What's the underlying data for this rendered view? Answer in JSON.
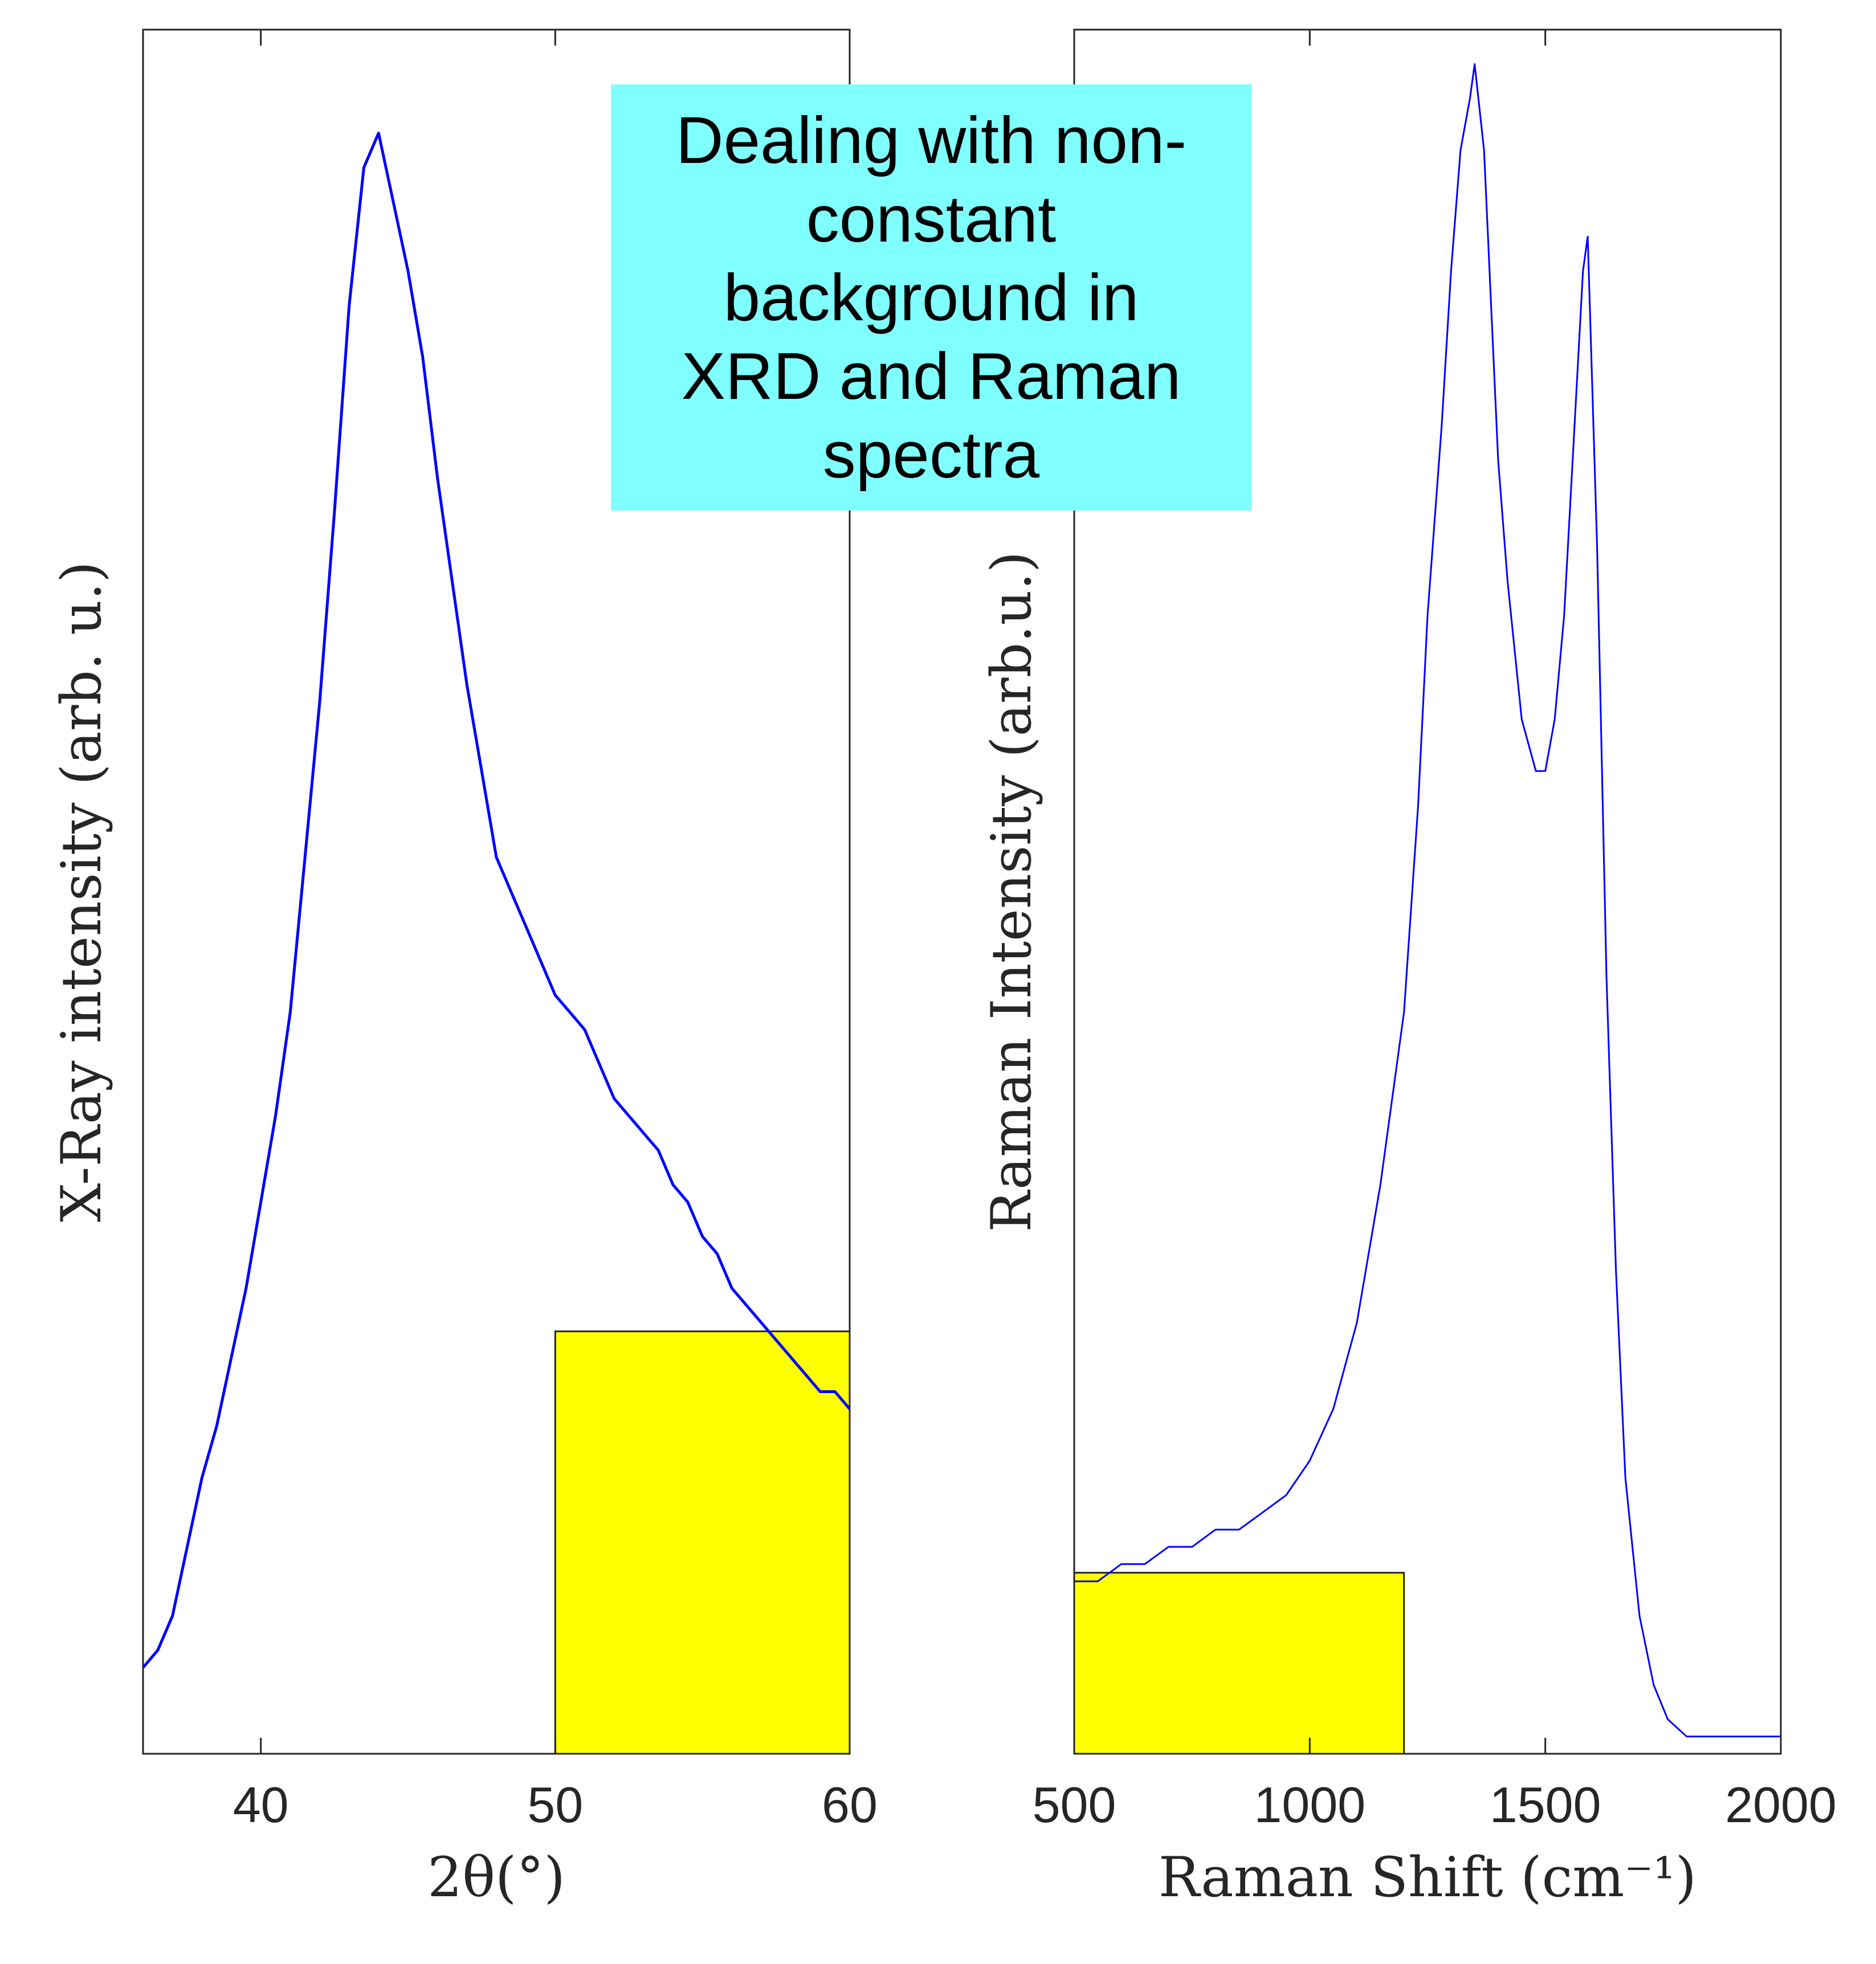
{
  "banner": "Dealing with non-constant background in XRD and Raman spectra",
  "colors": {
    "line": "#0000ff",
    "highlight": "#ffff00",
    "banner_bg": "#80ffff",
    "axes": "#262626"
  },
  "chart_data": [
    {
      "type": "line",
      "title": "",
      "xlabel": "2θ(°)",
      "ylabel": "X-Ray intensity (arb. u.)",
      "xlim": [
        36,
        60
      ],
      "ylim": [
        0,
        1
      ],
      "xticks": [
        40,
        50,
        60
      ],
      "yticks_shown": false,
      "grid": false,
      "series": [
        {
          "x": [
            36,
            36.5,
            37,
            37.5,
            38,
            38.5,
            39,
            39.5,
            40,
            40.5,
            41,
            41.5,
            42,
            42.5,
            43,
            43.5,
            44,
            44.5,
            45,
            45.5,
            46,
            46.5,
            47,
            47.5,
            48,
            48.5,
            49,
            49.5,
            50,
            50.5,
            51,
            51.5,
            52,
            52.5,
            53,
            53.5,
            54,
            54.5,
            55,
            55.5,
            56,
            56.5,
            57,
            57.5,
            58,
            58.5,
            59,
            59.5,
            60
          ],
          "y": [
            0.05,
            0.06,
            0.08,
            0.12,
            0.16,
            0.19,
            0.23,
            0.27,
            0.32,
            0.37,
            0.43,
            0.52,
            0.61,
            0.72,
            0.84,
            0.92,
            0.94,
            0.9,
            0.86,
            0.81,
            0.74,
            0.68,
            0.62,
            0.57,
            0.52,
            0.5,
            0.48,
            0.46,
            0.44,
            0.43,
            0.42,
            0.4,
            0.38,
            0.37,
            0.36,
            0.35,
            0.33,
            0.32,
            0.3,
            0.29,
            0.27,
            0.26,
            0.25,
            0.24,
            0.23,
            0.22,
            0.21,
            0.21,
            0.2
          ]
        }
      ],
      "highlight": {
        "x": [
          50,
          60
        ],
        "y": [
          0,
          0.245
        ]
      }
    },
    {
      "type": "line",
      "title": "",
      "xlabel": "Raman Shift (cm⁻¹)",
      "ylabel": "Raman Intensity (arb.u.)",
      "xlim": [
        500,
        2000
      ],
      "ylim": [
        0,
        1
      ],
      "xticks": [
        500,
        1000,
        1500,
        2000
      ],
      "yticks_shown": false,
      "grid": false,
      "series": [
        {
          "x": [
            500,
            550,
            600,
            650,
            700,
            750,
            800,
            850,
            900,
            950,
            1000,
            1050,
            1100,
            1150,
            1200,
            1230,
            1250,
            1280,
            1300,
            1320,
            1340,
            1350,
            1370,
            1400,
            1420,
            1450,
            1480,
            1500,
            1520,
            1540,
            1560,
            1580,
            1590,
            1610,
            1630,
            1650,
            1670,
            1700,
            1730,
            1760,
            1800,
            1850,
            1900,
            1950,
            2000
          ],
          "y": [
            0.1,
            0.1,
            0.11,
            0.11,
            0.12,
            0.12,
            0.13,
            0.13,
            0.14,
            0.15,
            0.17,
            0.2,
            0.25,
            0.33,
            0.43,
            0.55,
            0.66,
            0.77,
            0.86,
            0.93,
            0.96,
            0.98,
            0.93,
            0.75,
            0.68,
            0.6,
            0.57,
            0.57,
            0.6,
            0.66,
            0.76,
            0.86,
            0.88,
            0.7,
            0.45,
            0.28,
            0.16,
            0.08,
            0.04,
            0.02,
            0.01,
            0.01,
            0.01,
            0.01,
            0.01
          ]
        }
      ],
      "highlight": {
        "x": [
          500,
          1200
        ],
        "y": [
          0,
          0.105
        ]
      }
    }
  ]
}
